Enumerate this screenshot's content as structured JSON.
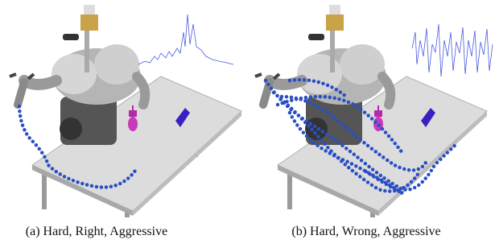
{
  "figure": {
    "panels": [
      {
        "caption": "(a) Hard, Right, Aggressive"
      },
      {
        "caption": "(b) Hard, Wrong, Aggressive"
      }
    ]
  }
}
